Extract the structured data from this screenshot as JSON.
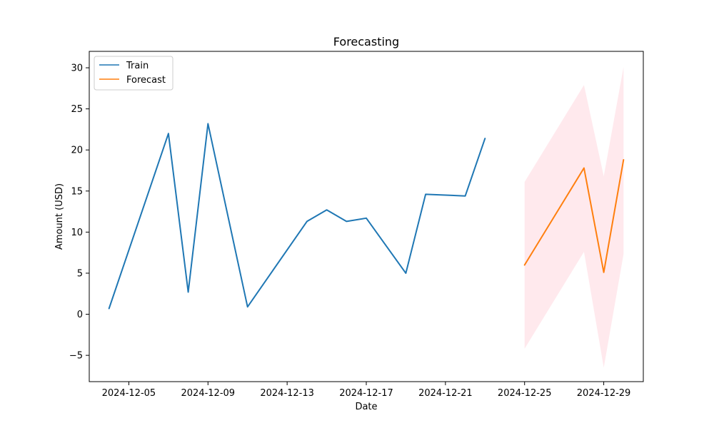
{
  "chart_data": {
    "type": "line",
    "title": "Forecasting",
    "xlabel": "Date",
    "ylabel": "Amount (USD)",
    "xlim": [
      "2024-12-03",
      "2024-12-31"
    ],
    "ylim": [
      -8.2,
      32
    ],
    "x_ticks": [
      "2024-12-05",
      "2024-12-09",
      "2024-12-13",
      "2024-12-17",
      "2024-12-21",
      "2024-12-25",
      "2024-12-29"
    ],
    "y_ticks": [
      -5,
      0,
      5,
      10,
      15,
      20,
      25,
      30
    ],
    "grid": false,
    "legend": {
      "placement": "top-left",
      "entries": [
        "Train",
        "Forecast"
      ]
    },
    "series": [
      {
        "name": "Train",
        "color": "#1f77b4",
        "x": [
          "2024-12-04",
          "2024-12-07",
          "2024-12-08",
          "2024-12-09",
          "2024-12-11",
          "2024-12-14",
          "2024-12-15",
          "2024-12-16",
          "2024-12-17",
          "2024-12-19",
          "2024-12-20",
          "2024-12-22",
          "2024-12-23"
        ],
        "y": [
          0.7,
          22.0,
          2.7,
          23.2,
          0.9,
          11.3,
          12.7,
          11.3,
          11.7,
          5.0,
          14.6,
          14.4,
          21.4
        ]
      },
      {
        "name": "Forecast",
        "color": "#ff7f0e",
        "x": [
          "2024-12-25",
          "2024-12-28",
          "2024-12-29",
          "2024-12-30"
        ],
        "y": [
          6.0,
          17.8,
          5.1,
          18.8
        ]
      }
    ],
    "confidence_band": {
      "color": "#ffc0cb",
      "x": [
        "2024-12-25",
        "2024-12-28",
        "2024-12-29",
        "2024-12-30"
      ],
      "lower": [
        -4.2,
        7.6,
        -6.5,
        7.3
      ],
      "upper": [
        16.1,
        27.9,
        16.8,
        30.1
      ]
    }
  }
}
